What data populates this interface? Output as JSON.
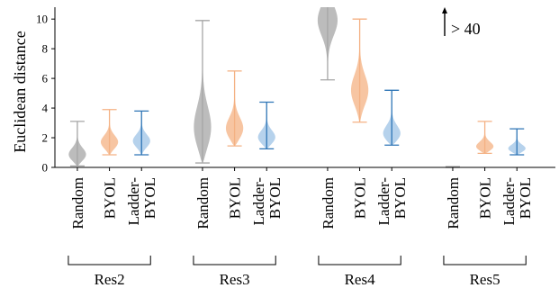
{
  "chart_data": {
    "type": "violin",
    "ylabel": "Euclidean distance",
    "yticks": [
      0,
      2,
      4,
      6,
      8,
      10
    ],
    "ylim": [
      0,
      10.8
    ],
    "annotation": "> 40",
    "groups": [
      "Res2",
      "Res3",
      "Res4",
      "Res5"
    ],
    "methods": [
      {
        "label": "Random",
        "color": "#a6a6a6"
      },
      {
        "label": "BYOL",
        "color": "#f4b183"
      },
      {
        "label": "Ladder-\nBYOL",
        "color": "#9dc3e6",
        "line_color": "#2e75b6"
      }
    ],
    "violins": [
      {
        "group": "Res2",
        "method": "Random",
        "min": 0.1,
        "max": 3.1,
        "median": 0.75,
        "mode": 0.75
      },
      {
        "group": "Res2",
        "method": "BYOL",
        "min": 0.85,
        "max": 3.9,
        "median": 1.7,
        "mode": 1.6
      },
      {
        "group": "Res2",
        "method": "Ladder-BYOL",
        "min": 0.85,
        "max": 3.8,
        "median": 1.75,
        "mode": 1.7
      },
      {
        "group": "Res3",
        "method": "Random",
        "min": 0.3,
        "max": 9.9,
        "median": 2.5,
        "mode": 2.3
      },
      {
        "group": "Res3",
        "method": "BYOL",
        "min": 1.45,
        "max": 6.5,
        "median": 2.9,
        "mode": 2.4
      },
      {
        "group": "Res3",
        "method": "Ladder-BYOL",
        "min": 1.25,
        "max": 4.4,
        "median": 2.1,
        "mode": 1.9
      },
      {
        "group": "Res4",
        "method": "Random",
        "min": 5.9,
        "max": 40,
        "median": 10,
        "mode": 10
      },
      {
        "group": "Res4",
        "method": "BYOL",
        "min": 3.05,
        "max": 10.0,
        "median": 5.0,
        "mode": 5.0
      },
      {
        "group": "Res4",
        "method": "Ladder-BYOL",
        "min": 1.5,
        "max": 5.2,
        "median": 2.3,
        "mode": 2.1
      },
      {
        "group": "Res5",
        "method": "Random",
        "min": 0.0,
        "max": 0.05,
        "median": 0.02,
        "mode": 0.02
      },
      {
        "group": "Res5",
        "method": "BYOL",
        "min": 0.95,
        "max": 3.1,
        "median": 1.35,
        "mode": 1.3
      },
      {
        "group": "Res5",
        "method": "Ladder-BYOL",
        "min": 0.85,
        "max": 2.6,
        "median": 1.25,
        "mode": 1.2
      }
    ]
  }
}
